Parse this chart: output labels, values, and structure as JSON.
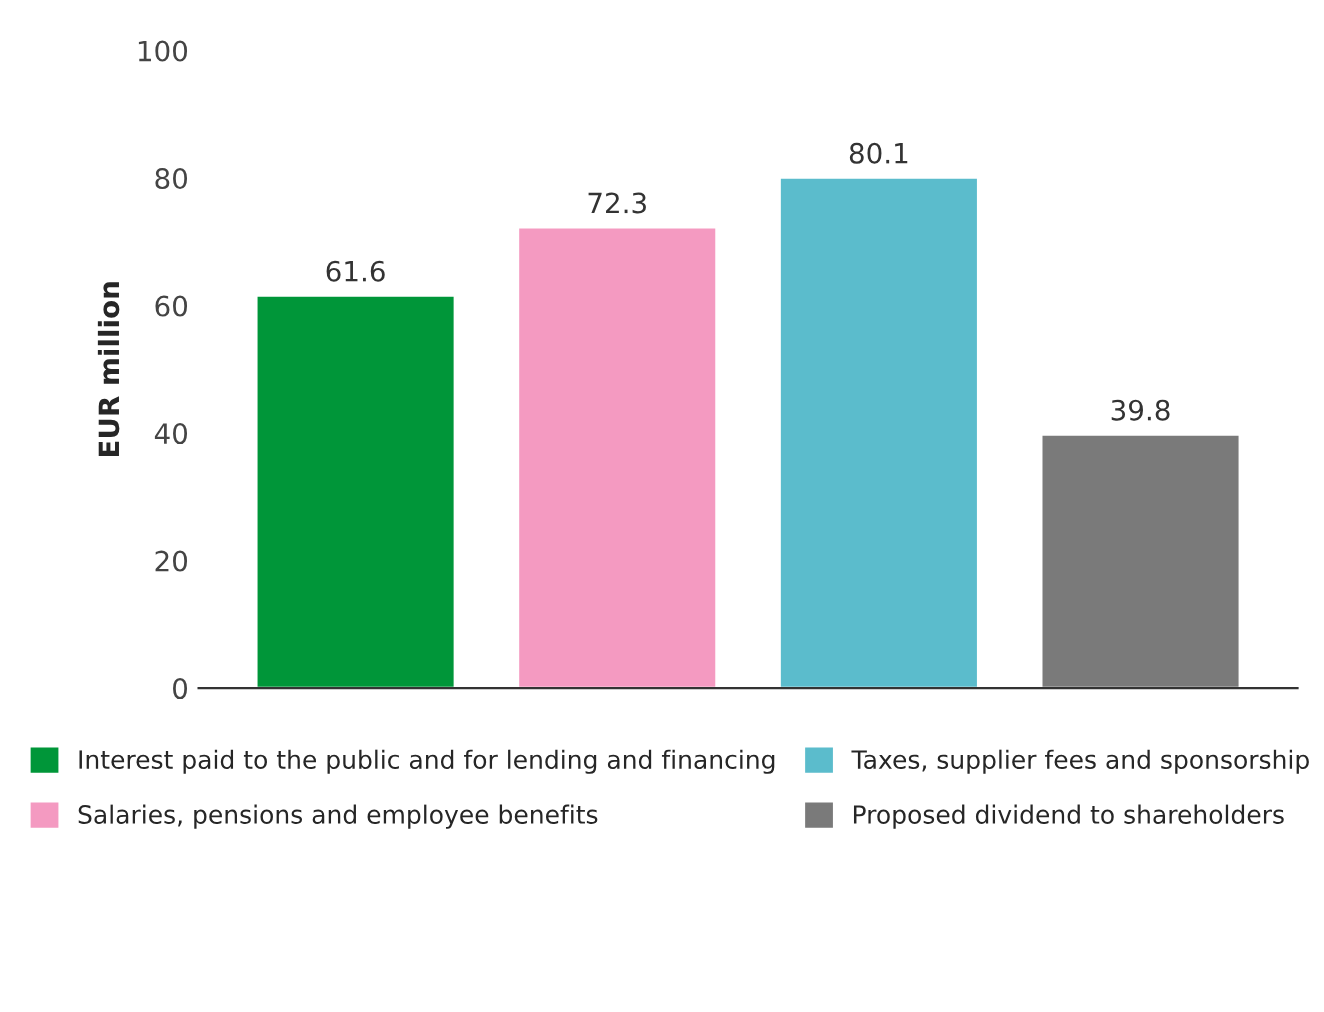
{
  "chart_data": {
    "type": "bar",
    "ylabel": "EUR million",
    "categories": [
      null,
      null,
      null,
      null
    ],
    "series": [
      {
        "name": "Interest paid to the public and for lending and financing",
        "color": "#009639",
        "values": [
          61.6,
          null,
          null,
          null
        ]
      },
      {
        "name": "Salaries, pensions and employee benefits",
        "color": "#f49ac1",
        "values": [
          null,
          72.3,
          null,
          null
        ]
      },
      {
        "name": "Taxes, supplier fees and sponsorship",
        "color": "#5bbccc",
        "values": [
          null,
          null,
          80.1,
          null
        ]
      },
      {
        "name": "Proposed dividend to shareholders",
        "color": "#7a7a7a",
        "values": [
          null,
          null,
          null,
          39.8
        ]
      }
    ],
    "ylim": [
      0,
      100
    ],
    "yticks": [
      0,
      20,
      40,
      60,
      80,
      100
    ],
    "data_labels": true,
    "grid": false,
    "legend": "bottom"
  }
}
